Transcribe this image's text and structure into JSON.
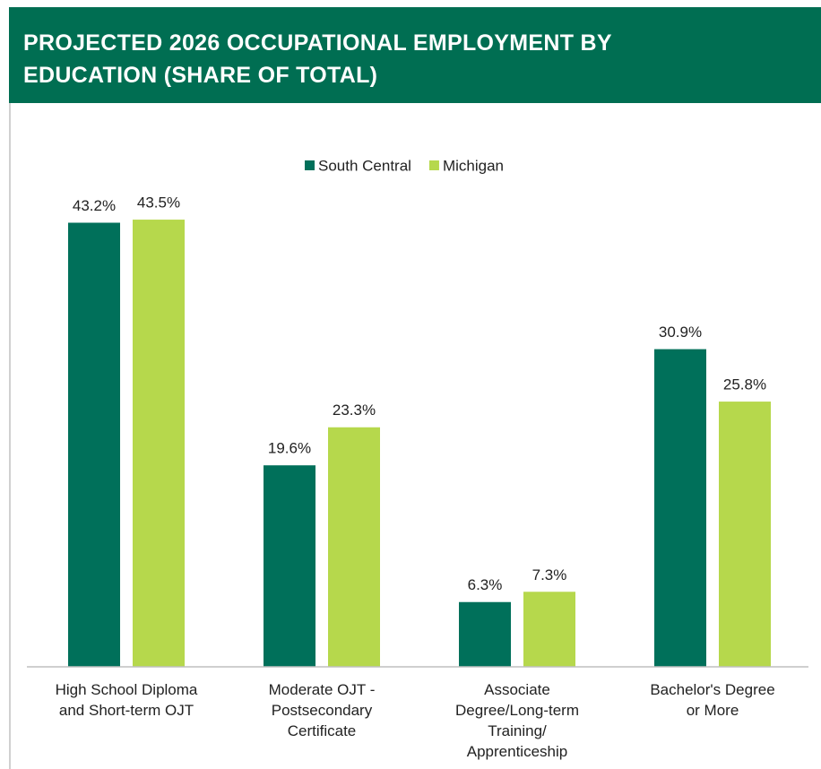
{
  "chart_data": {
    "type": "bar",
    "title": "PROJECTED 2026 OCCUPATIONAL EMPLOYMENT BY EDUCATION (SHARE OF TOTAL)",
    "categories": [
      "High School Diploma\nand Short-term OJT",
      "Moderate OJT -\nPostsecondary\nCertificate",
      "Associate\nDegree/Long-term\nTraining/\nApprenticeship",
      "Bachelor's Degree\nor More"
    ],
    "series": [
      {
        "name": "South Central",
        "color": "#00705a",
        "values": [
          43.2,
          19.6,
          6.3,
          30.9
        ],
        "value_labels": [
          "43.2%",
          "19.6%",
          "6.3%",
          "30.9%"
        ]
      },
      {
        "name": "Michigan",
        "color": "#b6d84c",
        "values": [
          43.5,
          23.3,
          7.3,
          25.8
        ],
        "value_labels": [
          "43.5%",
          "23.3%",
          "7.3%",
          "25.8%"
        ]
      }
    ],
    "ylim": [
      0,
      50
    ],
    "legend": "top"
  }
}
